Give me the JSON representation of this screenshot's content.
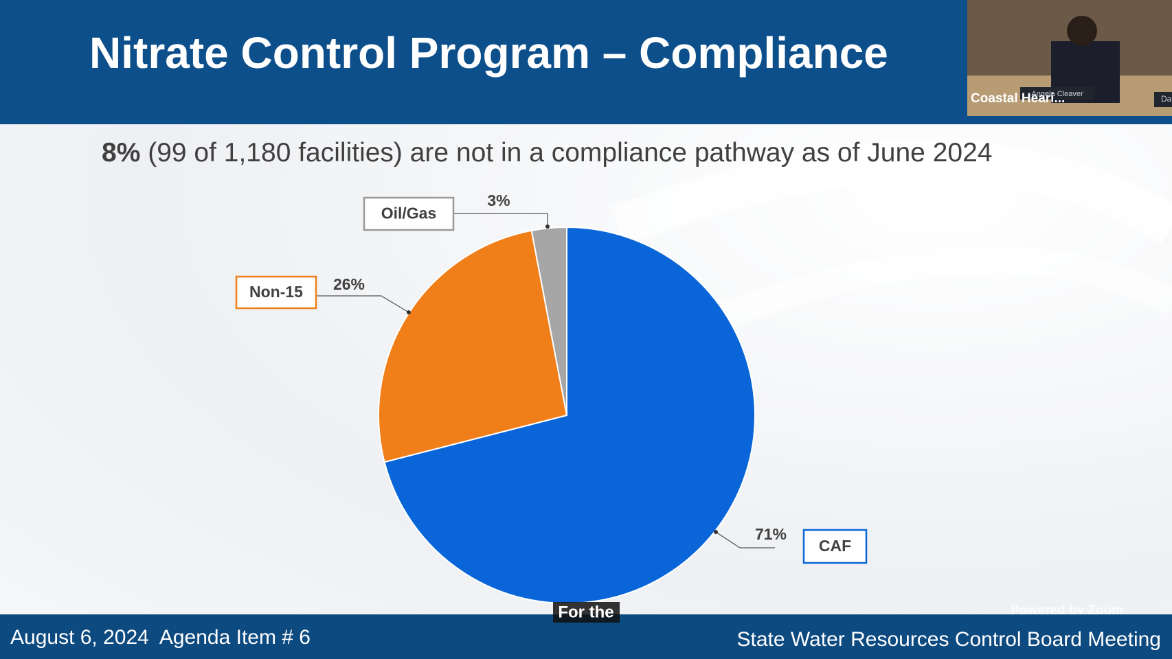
{
  "header": {
    "title": "Nitrate Control Program – Compliance"
  },
  "subtitle": {
    "emphasis": "8%",
    "text": "(99 of 1,180 facilities) are not in a compliance pathway as of June 2024"
  },
  "chart_data": {
    "type": "pie",
    "categories": [
      "CAF",
      "Non-15",
      "Oil/Gas"
    ],
    "values": [
      71,
      26,
      3
    ],
    "value_labels": [
      "71%",
      "26%",
      "3%"
    ],
    "colors": [
      "#0a66d8",
      "#f07f1a",
      "#a6a6a6"
    ]
  },
  "video": {
    "participant": "Coastal Heari...",
    "nameplate": "Angela Cleaver",
    "nameplate2": "Da"
  },
  "caption": "For the",
  "watermark": "Powered by Zoom",
  "footer": {
    "left": "August 6, 2024  Agenda Item # 6",
    "right": "State Water Resources Control Board Meeting"
  }
}
